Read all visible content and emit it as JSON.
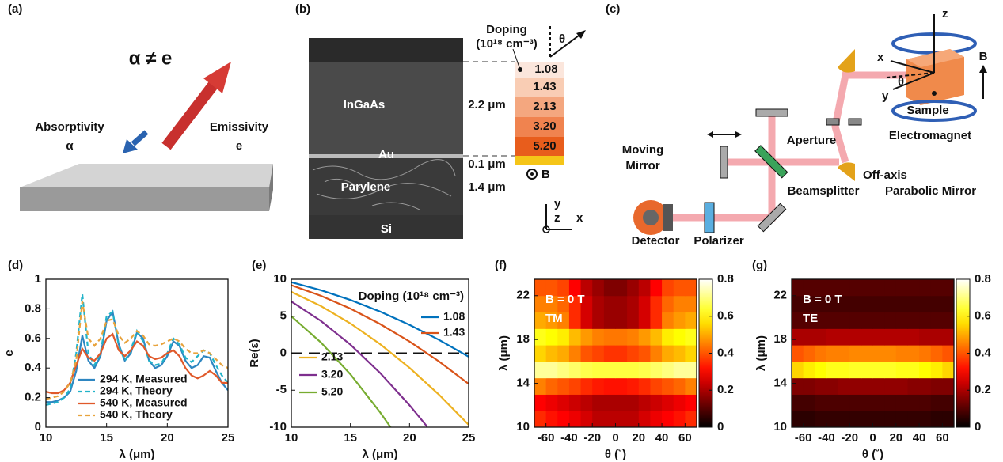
{
  "diagrams": {
    "a": {
      "label": "(a)",
      "title": "α ≠ e",
      "absorptivity": "Absorptivity",
      "alpha": "α",
      "emissivity": "Emissivity",
      "e": "e"
    },
    "b": {
      "label": "(b)",
      "layers": [
        "InGaAs",
        "Au",
        "Parylene",
        "Si"
      ],
      "doping_title": "Doping",
      "doping_unit": "(10¹⁸ cm⁻³)",
      "theta": "θ",
      "thicknesses": [
        "2.2 μm",
        "0.1 μm",
        "1.4 μm"
      ],
      "doping": [
        "1.08",
        "1.43",
        "2.13",
        "3.20",
        "5.20"
      ],
      "field": "B",
      "axes": [
        "y",
        "z",
        "x"
      ]
    },
    "c": {
      "label": "(c)",
      "z": "z",
      "x": "x",
      "y": "y",
      "theta": "θ",
      "field": "B",
      "sample": "Sample",
      "electromagnet": "Electromagnet",
      "aperture": "Aperture",
      "moving_mirror": [
        "Moving",
        "Mirror"
      ],
      "beamsplitter": "Beamsplitter",
      "parabolic": [
        "Off-axis",
        "Parabolic Mirror"
      ],
      "detector": "Detector",
      "polarizer": "Polarizer"
    }
  },
  "chart_data": [
    {
      "type": "line",
      "panel_label": "(d)",
      "xlabel": "λ (μm)",
      "ylabel": "e",
      "legend": "lower left",
      "xlim": [
        10,
        25
      ],
      "ylim": [
        0,
        1
      ],
      "xticks": [
        10,
        15,
        20,
        25
      ],
      "yticks": [
        0,
        0.2,
        0.4,
        0.6,
        0.8,
        1
      ],
      "x": [
        10,
        10.5,
        11,
        11.5,
        12,
        12.5,
        13,
        13.5,
        14,
        14.5,
        15,
        15.5,
        16,
        16.5,
        17,
        17.5,
        18,
        18.5,
        19,
        19.5,
        20,
        20.5,
        21,
        21.5,
        22,
        22.5,
        23,
        23.5,
        24,
        24.5,
        25
      ],
      "series": [
        {
          "name": "294 K, Measured",
          "color": "#2e86c1",
          "linestyle": "solid",
          "values": [
            0.17,
            0.17,
            0.18,
            0.2,
            0.24,
            0.38,
            0.62,
            0.45,
            0.4,
            0.48,
            0.72,
            0.78,
            0.56,
            0.45,
            0.5,
            0.64,
            0.6,
            0.45,
            0.4,
            0.42,
            0.48,
            0.58,
            0.55,
            0.45,
            0.4,
            0.42,
            0.48,
            0.47,
            0.38,
            0.3,
            0.25
          ]
        },
        {
          "name": "294 K, Theory",
          "color": "#22b3c9",
          "linestyle": "dashed",
          "values": [
            0.15,
            0.16,
            0.17,
            0.2,
            0.26,
            0.5,
            0.9,
            0.5,
            0.42,
            0.5,
            0.75,
            0.78,
            0.55,
            0.45,
            0.52,
            0.65,
            0.58,
            0.45,
            0.42,
            0.43,
            0.5,
            0.6,
            0.56,
            0.47,
            0.44,
            0.48,
            0.52,
            0.5,
            0.42,
            0.35,
            0.3
          ]
        },
        {
          "name": "540 K, Measured",
          "color": "#e0592a",
          "linestyle": "solid",
          "values": [
            0.24,
            0.23,
            0.23,
            0.25,
            0.3,
            0.42,
            0.53,
            0.47,
            0.45,
            0.5,
            0.6,
            0.63,
            0.52,
            0.48,
            0.52,
            0.58,
            0.55,
            0.48,
            0.46,
            0.47,
            0.5,
            0.52,
            0.48,
            0.4,
            0.35,
            0.33,
            0.35,
            0.38,
            0.35,
            0.3,
            0.3
          ]
        },
        {
          "name": "540 K, Theory",
          "color": "#e8a33d",
          "linestyle": "dashed",
          "values": [
            0.19,
            0.2,
            0.21,
            0.24,
            0.3,
            0.45,
            0.85,
            0.6,
            0.55,
            0.6,
            0.72,
            0.73,
            0.62,
            0.57,
            0.6,
            0.65,
            0.62,
            0.56,
            0.55,
            0.56,
            0.58,
            0.6,
            0.58,
            0.53,
            0.5,
            0.5,
            0.52,
            0.5,
            0.46,
            0.42,
            0.4
          ]
        }
      ]
    },
    {
      "type": "line",
      "panel_label": "(e)",
      "xlabel": "λ (μm)",
      "ylabel": "Re(ε)",
      "legend": "upper right",
      "legend_title": "Doping (10¹⁸ cm⁻³)",
      "xlim": [
        10,
        25
      ],
      "ylim": [
        -10,
        10
      ],
      "xticks": [
        10,
        15,
        20,
        25
      ],
      "yticks": [
        -10,
        -5,
        0,
        5,
        10
      ],
      "hline": 0,
      "series": [
        {
          "name": "1.08",
          "color": "#0072bd",
          "linestyle": "solid",
          "x": [
            10,
            12.5,
            15,
            17.5,
            20,
            22.5,
            25
          ],
          "values": [
            9.6,
            8.52,
            7.2,
            5.64,
            3.84,
            1.8,
            -0.47
          ]
        },
        {
          "name": "1.43",
          "color": "#d95319",
          "linestyle": "solid",
          "x": [
            10,
            12.5,
            15,
            17.5,
            20,
            22.5,
            25
          ],
          "values": [
            9.2,
            7.77,
            6.03,
            3.96,
            1.58,
            -1.12,
            -4.14
          ]
        },
        {
          "name": "2.13",
          "color": "#edb120",
          "linestyle": "solid",
          "x": [
            10,
            12.5,
            15,
            17.5,
            20,
            22.5,
            25
          ],
          "values": [
            8.3,
            6.38,
            4.02,
            1.24,
            -1.97,
            -5.61,
            -9.68
          ]
        },
        {
          "name": "3.20",
          "color": "#7e2f8e",
          "linestyle": "solid",
          "x": [
            10,
            12.5,
            15,
            17.5,
            20,
            21.5
          ],
          "values": [
            7.0,
            4.37,
            1.16,
            -2.65,
            -7.03,
            -9.94
          ]
        },
        {
          "name": "5.20",
          "color": "#77ac30",
          "linestyle": "solid",
          "x": [
            10,
            12.5,
            15,
            17.5,
            18.4
          ],
          "values": [
            5.0,
            1.46,
            -2.86,
            -7.97,
            -10.0
          ]
        }
      ]
    },
    {
      "type": "heatmap",
      "panel_label": "(f)",
      "xlabel": "θ (˚)",
      "ylabel": "λ (μm)",
      "annotations": [
        "B = 0 T",
        "TM"
      ],
      "xlim": [
        -70,
        70
      ],
      "ylim": [
        10,
        23.5
      ],
      "xticks": [
        -60,
        -40,
        -20,
        0,
        20,
        40,
        60
      ],
      "yticks": [
        10,
        14,
        18,
        22
      ],
      "colormap": "hot",
      "clim": [
        0,
        0.8
      ],
      "cbar_ticks": [
        0,
        0.2,
        0.4,
        0.6,
        0.8
      ],
      "x": [
        -65,
        -55,
        -45,
        -35,
        -25,
        -15,
        -5,
        5,
        15,
        25,
        35,
        45,
        55,
        65
      ],
      "y": [
        10.75,
        12.25,
        13.75,
        15.25,
        16.75,
        18.25,
        19.75,
        21.25,
        22.75
      ],
      "z": [
        [
          0.35,
          0.32,
          0.3,
          0.28,
          0.25,
          0.22,
          0.22,
          0.22,
          0.22,
          0.25,
          0.28,
          0.3,
          0.32,
          0.35
        ],
        [
          0.3,
          0.28,
          0.26,
          0.24,
          0.22,
          0.2,
          0.2,
          0.2,
          0.2,
          0.22,
          0.24,
          0.26,
          0.28,
          0.3
        ],
        [
          0.45,
          0.42,
          0.4,
          0.38,
          0.35,
          0.33,
          0.32,
          0.32,
          0.33,
          0.35,
          0.38,
          0.4,
          0.42,
          0.45
        ],
        [
          0.72,
          0.72,
          0.7,
          0.68,
          0.66,
          0.65,
          0.65,
          0.65,
          0.65,
          0.66,
          0.68,
          0.7,
          0.72,
          0.72
        ],
        [
          0.55,
          0.52,
          0.5,
          0.45,
          0.4,
          0.38,
          0.36,
          0.36,
          0.38,
          0.4,
          0.45,
          0.5,
          0.52,
          0.55
        ],
        [
          0.62,
          0.6,
          0.58,
          0.52,
          0.48,
          0.45,
          0.44,
          0.44,
          0.45,
          0.48,
          0.52,
          0.58,
          0.6,
          0.62
        ],
        [
          0.5,
          0.48,
          0.45,
          0.35,
          0.25,
          0.2,
          0.18,
          0.18,
          0.2,
          0.25,
          0.35,
          0.45,
          0.48,
          0.5
        ],
        [
          0.45,
          0.45,
          0.42,
          0.35,
          0.25,
          0.2,
          0.18,
          0.18,
          0.2,
          0.25,
          0.35,
          0.42,
          0.45,
          0.45
        ],
        [
          0.4,
          0.4,
          0.38,
          0.3,
          0.22,
          0.18,
          0.15,
          0.15,
          0.18,
          0.22,
          0.3,
          0.38,
          0.4,
          0.4
        ]
      ]
    },
    {
      "type": "heatmap",
      "panel_label": "(g)",
      "xlabel": "θ (˚)",
      "ylabel": "λ (μm)",
      "annotations": [
        "B = 0 T",
        "TE"
      ],
      "xlim": [
        -70,
        70
      ],
      "ylim": [
        10,
        23.5
      ],
      "xticks": [
        -60,
        -40,
        -20,
        0,
        20,
        40,
        60
      ],
      "yticks": [
        10,
        14,
        18,
        22
      ],
      "colormap": "hot",
      "clim": [
        0,
        0.8
      ],
      "cbar_ticks": [
        0,
        0.2,
        0.4,
        0.6,
        0.8
      ],
      "x": [
        -65,
        -55,
        -45,
        -35,
        -25,
        -15,
        -5,
        5,
        15,
        25,
        35,
        45,
        55,
        65
      ],
      "y": [
        10.75,
        12.25,
        13.75,
        15.25,
        16.75,
        18.25,
        19.75,
        21.25,
        22.75
      ],
      "z": [
        [
          0.05,
          0.05,
          0.06,
          0.06,
          0.06,
          0.06,
          0.06,
          0.06,
          0.06,
          0.06,
          0.06,
          0.06,
          0.05,
          0.05
        ],
        [
          0.08,
          0.08,
          0.09,
          0.09,
          0.09,
          0.09,
          0.09,
          0.09,
          0.09,
          0.09,
          0.09,
          0.09,
          0.08,
          0.08
        ],
        [
          0.15,
          0.15,
          0.16,
          0.16,
          0.17,
          0.17,
          0.17,
          0.17,
          0.17,
          0.17,
          0.16,
          0.16,
          0.15,
          0.15
        ],
        [
          0.55,
          0.58,
          0.6,
          0.62,
          0.62,
          0.63,
          0.63,
          0.63,
          0.63,
          0.62,
          0.62,
          0.6,
          0.58,
          0.55
        ],
        [
          0.4,
          0.42,
          0.44,
          0.45,
          0.45,
          0.46,
          0.46,
          0.46,
          0.46,
          0.45,
          0.45,
          0.44,
          0.42,
          0.4
        ],
        [
          0.2,
          0.2,
          0.2,
          0.21,
          0.21,
          0.21,
          0.21,
          0.21,
          0.21,
          0.21,
          0.21,
          0.2,
          0.2,
          0.2
        ],
        [
          0.1,
          0.1,
          0.1,
          0.1,
          0.1,
          0.1,
          0.1,
          0.1,
          0.1,
          0.1,
          0.1,
          0.1,
          0.1,
          0.1
        ],
        [
          0.08,
          0.08,
          0.08,
          0.08,
          0.08,
          0.08,
          0.08,
          0.08,
          0.08,
          0.08,
          0.08,
          0.08,
          0.08,
          0.08
        ],
        [
          0.1,
          0.1,
          0.1,
          0.1,
          0.1,
          0.1,
          0.1,
          0.1,
          0.1,
          0.1,
          0.1,
          0.1,
          0.1,
          0.1
        ]
      ]
    }
  ]
}
